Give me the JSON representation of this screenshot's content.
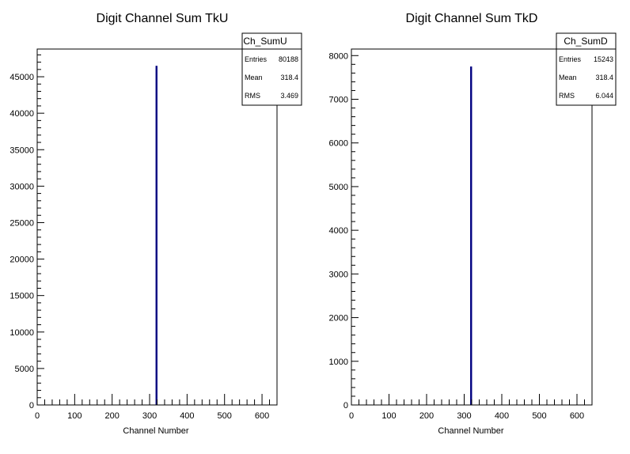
{
  "chart_data": [
    {
      "type": "bar",
      "title": "Digit Channel Sum TkU",
      "xlabel": "Channel Number",
      "ylabel": "",
      "xlim": [
        0,
        640
      ],
      "ylim": [
        0,
        48800
      ],
      "x_ticks": [
        0,
        100,
        200,
        300,
        400,
        500,
        600
      ],
      "y_ticks": [
        0,
        5000,
        10000,
        15000,
        20000,
        25000,
        30000,
        35000,
        40000,
        45000
      ],
      "x_tick_labels": [
        "0",
        "100",
        "200",
        "300",
        "400",
        "500",
        "600"
      ],
      "y_tick_labels": [
        "0",
        "5000",
        "10000",
        "15000",
        "20000",
        "25000",
        "30000",
        "35000",
        "40000",
        "45000"
      ],
      "bins": [
        {
          "x": 318,
          "value": 46500
        }
      ],
      "line_color": "#000080",
      "stats": {
        "name": "Ch_SumU",
        "rows": [
          {
            "label": "Entries",
            "value": "80188"
          },
          {
            "label": "Mean",
            "value": "318.4"
          },
          {
            "label": "RMS",
            "value": "3.469"
          }
        ]
      }
    },
    {
      "type": "bar",
      "title": "Digit Channel Sum TkD",
      "xlabel": "Channel Number",
      "ylabel": "",
      "xlim": [
        0,
        640
      ],
      "ylim": [
        0,
        8150
      ],
      "x_ticks": [
        0,
        100,
        200,
        300,
        400,
        500,
        600
      ],
      "y_ticks": [
        0,
        1000,
        2000,
        3000,
        4000,
        5000,
        6000,
        7000,
        8000
      ],
      "x_tick_labels": [
        "0",
        "100",
        "200",
        "300",
        "400",
        "500",
        "600"
      ],
      "y_tick_labels": [
        "0",
        "1000",
        "2000",
        "3000",
        "4000",
        "5000",
        "6000",
        "7000",
        "8000"
      ],
      "bins": [
        {
          "x": 318,
          "value": 7750
        }
      ],
      "line_color": "#000080",
      "stats": {
        "name": "Ch_SumD",
        "rows": [
          {
            "label": "Entries",
            "value": "15243"
          },
          {
            "label": "Mean",
            "value": "318.4"
          },
          {
            "label": "RMS",
            "value": "6.044"
          }
        ]
      }
    }
  ]
}
